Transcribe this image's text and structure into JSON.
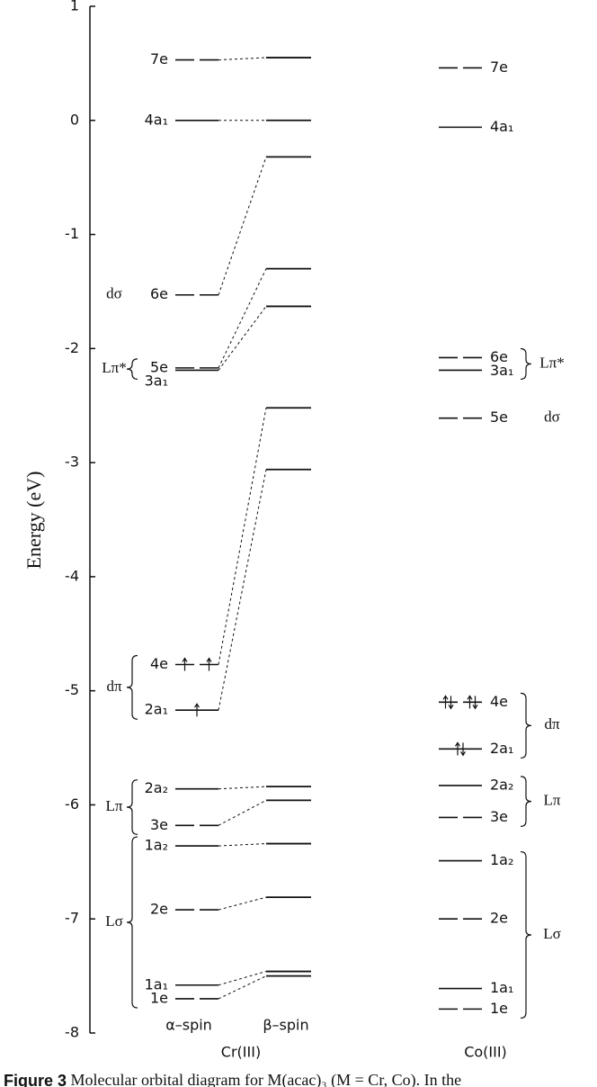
{
  "chart_data": {
    "type": "mo-diagram",
    "y_label": "Energy (eV)",
    "ylim": [
      -8,
      1
    ],
    "yticks": [
      -8,
      -7,
      -6,
      -5,
      -4,
      -3,
      -2,
      -1,
      0,
      1
    ],
    "complexes": [
      {
        "name": "Cr(III)",
        "alpha": {
          "name": "α–spin",
          "levels": [
            {
              "label": "7e",
              "energy": 0.53
            },
            {
              "label": "4a₁",
              "energy": 0.0
            },
            {
              "label": "6e",
              "energy": -1.53
            },
            {
              "label": "5e",
              "energy": -2.17
            },
            {
              "label": "3a₁",
              "energy": -2.19
            },
            {
              "label": "4e",
              "energy": -4.77,
              "electrons": 2
            },
            {
              "label": "2a₁",
              "energy": -5.17,
              "electrons": 1
            },
            {
              "label": "2a₂",
              "energy": -5.86
            },
            {
              "label": "3e",
              "energy": -6.18
            },
            {
              "label": "1a₂",
              "energy": -6.36
            },
            {
              "label": "2e",
              "energy": -6.92
            },
            {
              "label": "1a₁",
              "energy": -7.58
            },
            {
              "label": "1e",
              "energy": -7.7
            }
          ]
        },
        "beta": {
          "name": "β–spin",
          "energies": [
            0.55,
            0.0,
            -0.32,
            -1.3,
            -1.63,
            -2.52,
            -3.06,
            -5.84,
            -5.96,
            -6.34,
            -6.81,
            -7.46,
            -7.5
          ]
        },
        "groups": [
          {
            "label": "dσ",
            "span": [
              2,
              2
            ]
          },
          {
            "label": "Lπ*",
            "span": [
              3,
              4
            ]
          },
          {
            "label": "dπ",
            "span": [
              5,
              6
            ]
          },
          {
            "label": "Lπ",
            "span": [
              7,
              8
            ]
          },
          {
            "label": "Lσ",
            "span": [
              9,
              12
            ]
          }
        ]
      },
      {
        "name": "Co(III)",
        "levels": [
          {
            "label": "7e",
            "energy": 0.46
          },
          {
            "label": "4a₁",
            "energy": -0.06
          },
          {
            "label": "6e",
            "energy": -2.08
          },
          {
            "label": "3a₁",
            "energy": -2.19
          },
          {
            "label": "5e",
            "energy": -2.61
          },
          {
            "label": "4e",
            "energy": -5.1,
            "electrons": 4
          },
          {
            "label": "2a₁",
            "energy": -5.51,
            "electrons": 2
          },
          {
            "label": "2a₂",
            "energy": -5.83
          },
          {
            "label": "3e",
            "energy": -6.11
          },
          {
            "label": "1a₂",
            "energy": -6.49
          },
          {
            "label": "2e",
            "energy": -7.0
          },
          {
            "label": "1a₁",
            "energy": -7.61
          },
          {
            "label": "1e",
            "energy": -7.79
          }
        ],
        "groups": [
          {
            "label": "Lπ*",
            "span": [
              2,
              3
            ]
          },
          {
            "label": "dσ",
            "span": [
              4,
              4
            ]
          },
          {
            "label": "dπ",
            "span": [
              5,
              6
            ]
          },
          {
            "label": "Lπ",
            "span": [
              7,
              8
            ]
          },
          {
            "label": "Lσ",
            "span": [
              9,
              12
            ]
          }
        ]
      }
    ],
    "caption": {
      "label": "Figure 3",
      "text": "Molecular orbital diagram for M(acac)₃ (M = Cr, Co). In the"
    }
  }
}
